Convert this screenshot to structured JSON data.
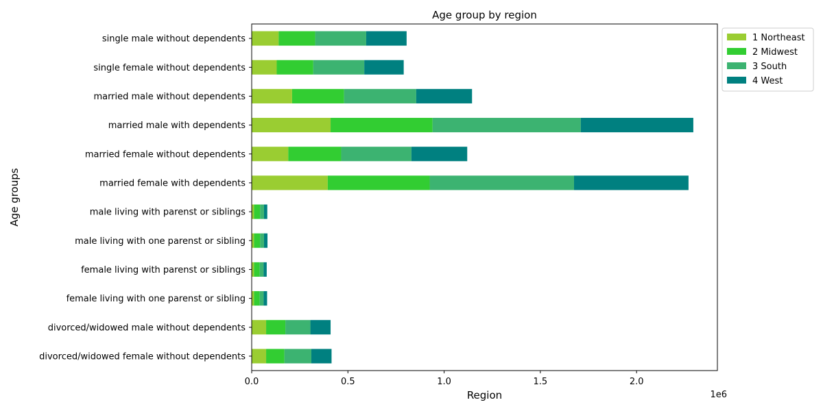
{
  "chart_data": {
    "type": "bar",
    "orientation": "horizontal",
    "stacked": true,
    "title": "Age group by region",
    "xlabel": "Region",
    "ylabel": "Age groups",
    "x_scale_label": "1e6",
    "xlim": [
      0,
      2420000
    ],
    "x_ticks": [
      0,
      500000,
      1000000,
      1500000,
      2000000
    ],
    "x_tick_labels": [
      "0.0",
      "0.5",
      "1.0",
      "1.5",
      "2.0"
    ],
    "grid": false,
    "legend_position": "outside top-right",
    "categories": [
      "divorced/widowed female without dependents",
      "divorced/widowed male without dependents",
      "female living with one parenst or sibling",
      "female living with parenst or siblings",
      "male living with one parenst or sibling",
      "male living with parenst or siblings",
      "married female with dependents",
      "married female without dependents",
      "married male with dependents",
      "married male without dependents",
      "single female without dependents",
      "single male without dependents"
    ],
    "series": [
      {
        "name": "1 Northeast",
        "color": "#9acd32",
        "values": [
          75000,
          75000,
          12000,
          12000,
          12000,
          12000,
          395000,
          190000,
          410000,
          210000,
          130000,
          140000
        ]
      },
      {
        "name": "2 Midwest",
        "color": "#32cd32",
        "values": [
          95000,
          100000,
          30000,
          30000,
          32000,
          32000,
          530000,
          275000,
          530000,
          270000,
          190000,
          190000
        ]
      },
      {
        "name": "3 South",
        "color": "#3cb371",
        "values": [
          140000,
          130000,
          20000,
          20000,
          20000,
          20000,
          750000,
          365000,
          770000,
          375000,
          265000,
          265000
        ]
      },
      {
        "name": "4 West",
        "color": "#008080",
        "values": [
          105000,
          105000,
          18000,
          16000,
          18000,
          17000,
          595000,
          290000,
          585000,
          290000,
          205000,
          210000
        ]
      }
    ]
  }
}
